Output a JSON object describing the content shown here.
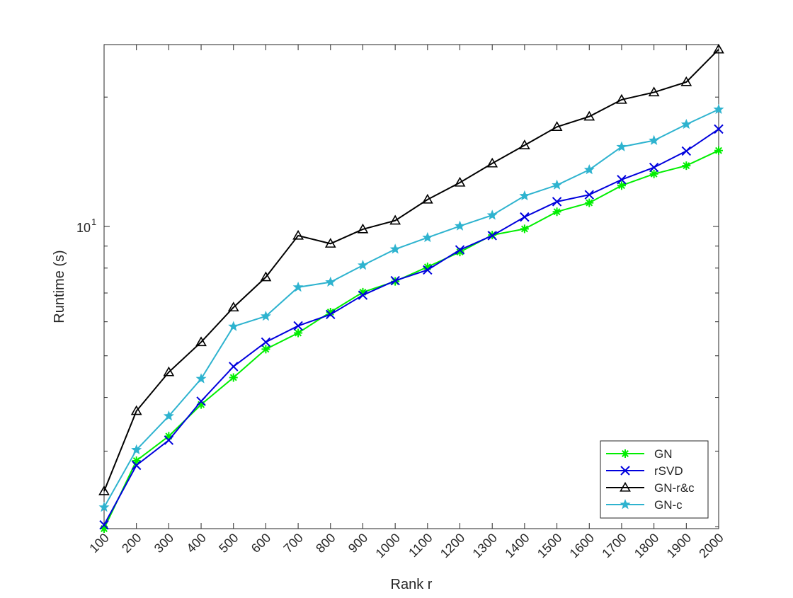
{
  "chart_data": {
    "type": "line",
    "xlabel": "Rank r",
    "ylabel": "Runtime (s)",
    "yscale": "log",
    "ylim": [
      1.98,
      26.5
    ],
    "x": [
      100,
      200,
      300,
      400,
      500,
      600,
      700,
      800,
      900,
      1000,
      1100,
      1200,
      1300,
      1400,
      1500,
      1600,
      1700,
      1800,
      1900,
      2000
    ],
    "x_tick_labels": [
      "100",
      "200",
      "300",
      "400",
      "500",
      "600",
      "700",
      "800",
      "900",
      "1000",
      "1100",
      "1200",
      "1300",
      "1400",
      "1500",
      "1600",
      "1700",
      "1800",
      "1900",
      "2000"
    ],
    "y_tick_label": {
      "base": "10",
      "exp": "1",
      "value": 10
    },
    "grid": false,
    "box": true,
    "legend_position": "bottom-right",
    "series": [
      {
        "name": "GN",
        "color": "#00ee00",
        "marker": "asterisk",
        "values": [
          1.98,
          2.85,
          3.25,
          3.85,
          4.45,
          5.18,
          5.65,
          6.32,
          7.03,
          7.45,
          8.05,
          8.72,
          9.55,
          9.87,
          10.82,
          11.35,
          12.45,
          13.25,
          13.85,
          15.02
        ]
      },
      {
        "name": "rSVD",
        "color": "#0000dd",
        "marker": "x",
        "values": [
          2.02,
          2.78,
          3.18,
          3.92,
          4.72,
          5.38,
          5.87,
          6.24,
          6.92,
          7.48,
          7.92,
          8.82,
          9.52,
          10.52,
          11.42,
          11.85,
          12.85,
          13.72,
          14.98,
          16.85
        ]
      },
      {
        "name": "GN-r&c",
        "color": "#000000",
        "marker": "triangle",
        "values": [
          2.42,
          3.72,
          4.58,
          5.38,
          6.48,
          7.62,
          9.52,
          9.12,
          9.85,
          10.32,
          11.55,
          12.65,
          14.02,
          15.45,
          17.05,
          18.02,
          19.72,
          20.52,
          21.68,
          25.82
        ]
      },
      {
        "name": "GN-c",
        "color": "#2eb3cf",
        "marker": "star",
        "values": [
          2.22,
          3.02,
          3.62,
          4.42,
          5.85,
          6.18,
          7.22,
          7.42,
          8.12,
          8.85,
          9.42,
          10.02,
          10.62,
          11.78,
          12.48,
          13.55,
          15.32,
          15.85,
          17.28,
          18.72
        ]
      }
    ]
  }
}
